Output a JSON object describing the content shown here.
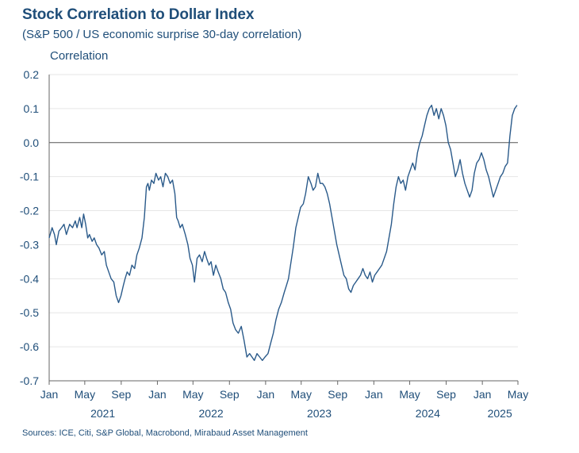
{
  "chart_data": {
    "type": "line",
    "title": "Stock Correlation to Dollar Index",
    "subtitle": "(S&P 500 / US economic surprise 30-day correlation)",
    "ylabel": "Correlation",
    "xlabel": "",
    "source": "Sources: ICE, Citi, S&P Global, Macrobond, Mirabaud Asset Management",
    "ylim": [
      -0.7,
      0.2
    ],
    "xlim": [
      "2021-01-01",
      "2025-05-01"
    ],
    "grid": true,
    "legend": "none",
    "line_color": "#2a5a8a",
    "y_ticks": [
      "0.2",
      "0.1",
      "0.0",
      "-0.1",
      "-0.2",
      "-0.3",
      "-0.4",
      "-0.5",
      "-0.6",
      "-0.7"
    ],
    "x_ticks": [
      {
        "label": "Jan",
        "date": "2021-01-01"
      },
      {
        "label": "May",
        "date": "2021-05-01"
      },
      {
        "label": "Sep",
        "date": "2021-09-01"
      },
      {
        "label": "Jan",
        "date": "2022-01-01"
      },
      {
        "label": "May",
        "date": "2022-05-01"
      },
      {
        "label": "Sep",
        "date": "2022-09-01"
      },
      {
        "label": "Jan",
        "date": "2023-01-01"
      },
      {
        "label": "May",
        "date": "2023-05-01"
      },
      {
        "label": "Sep",
        "date": "2023-09-01"
      },
      {
        "label": "Jan",
        "date": "2024-01-01"
      },
      {
        "label": "May",
        "date": "2024-05-01"
      },
      {
        "label": "Sep",
        "date": "2024-09-01"
      },
      {
        "label": "Jan",
        "date": "2025-01-01"
      },
      {
        "label": "May",
        "date": "2025-05-01"
      }
    ],
    "year_labels": [
      {
        "label": "2021",
        "date": "2021-07-01"
      },
      {
        "label": "2022",
        "date": "2022-07-01"
      },
      {
        "label": "2023",
        "date": "2023-07-01"
      },
      {
        "label": "2024",
        "date": "2024-07-01"
      },
      {
        "label": "2025",
        "date": "2025-03-01"
      }
    ],
    "series": [
      {
        "x": [
          "2021-01-01",
          "2021-01-11",
          "2021-01-19",
          "2021-01-25",
          "2021-02-03",
          "2021-02-12",
          "2021-02-20",
          "2021-02-28",
          "2021-03-11",
          "2021-03-21",
          "2021-03-30",
          "2021-04-05",
          "2021-04-14",
          "2021-04-21",
          "2021-04-27",
          "2021-05-04",
          "2021-05-11",
          "2021-05-17",
          "2021-05-26",
          "2021-06-02",
          "2021-06-10",
          "2021-06-18",
          "2021-06-27",
          "2021-07-06",
          "2021-07-13",
          "2021-07-21",
          "2021-07-29",
          "2021-08-07",
          "2021-08-15",
          "2021-08-23",
          "2021-08-31",
          "2021-09-08",
          "2021-09-14",
          "2021-09-21",
          "2021-09-29",
          "2021-10-07",
          "2021-10-16",
          "2021-10-24",
          "2021-11-01",
          "2021-11-10",
          "2021-11-18",
          "2021-11-25",
          "2021-11-30",
          "2021-12-05",
          "2021-12-12",
          "2021-12-20",
          "2021-12-27",
          "2022-01-05",
          "2022-01-12",
          "2022-01-20",
          "2022-01-28",
          "2022-02-05",
          "2022-02-13",
          "2022-02-21",
          "2022-03-01",
          "2022-03-07",
          "2022-03-12",
          "2022-03-19",
          "2022-03-26",
          "2022-04-05",
          "2022-04-14",
          "2022-04-21",
          "2022-04-29",
          "2022-05-06",
          "2022-05-15",
          "2022-05-23",
          "2022-06-01",
          "2022-06-09",
          "2022-06-16",
          "2022-06-24",
          "2022-07-01",
          "2022-07-09",
          "2022-07-17",
          "2022-07-25",
          "2022-08-03",
          "2022-08-11",
          "2022-08-19",
          "2022-08-28",
          "2022-09-05",
          "2022-09-13",
          "2022-09-22",
          "2022-10-01",
          "2022-10-11",
          "2022-10-20",
          "2022-10-30",
          "2022-11-08",
          "2022-11-16",
          "2022-11-24",
          "2022-12-03",
          "2022-12-12",
          "2022-12-21",
          "2022-12-30",
          "2023-01-09",
          "2023-01-18",
          "2023-01-27",
          "2023-02-05",
          "2023-02-14",
          "2023-02-23",
          "2023-03-05",
          "2023-03-12",
          "2023-03-19",
          "2023-03-26",
          "2023-04-04",
          "2023-04-13",
          "2023-04-21",
          "2023-04-29",
          "2023-05-08",
          "2023-05-16",
          "2023-05-25",
          "2023-06-03",
          "2023-06-10",
          "2023-06-18",
          "2023-06-26",
          "2023-07-04",
          "2023-07-12",
          "2023-07-20",
          "2023-07-28",
          "2023-08-05",
          "2023-08-13",
          "2023-08-21",
          "2023-08-29",
          "2023-09-06",
          "2023-09-14",
          "2023-09-22",
          "2023-09-30",
          "2023-10-08",
          "2023-10-16",
          "2023-10-24",
          "2023-11-01",
          "2023-11-09",
          "2023-11-17",
          "2023-11-25",
          "2023-12-03",
          "2023-12-11",
          "2023-12-19",
          "2023-12-27",
          "2024-01-04",
          "2024-01-12",
          "2024-01-20",
          "2024-01-28",
          "2024-02-05",
          "2024-02-13",
          "2024-02-21",
          "2024-02-29",
          "2024-03-08",
          "2024-03-16",
          "2024-03-24",
          "2024-04-01",
          "2024-04-09",
          "2024-04-17",
          "2024-04-25",
          "2024-05-03",
          "2024-05-11",
          "2024-05-19",
          "2024-05-27",
          "2024-06-04",
          "2024-06-12",
          "2024-06-20",
          "2024-06-28",
          "2024-07-06",
          "2024-07-14",
          "2024-07-22",
          "2024-07-30",
          "2024-08-07",
          "2024-08-15",
          "2024-08-23",
          "2024-08-31",
          "2024-09-08",
          "2024-09-16",
          "2024-09-24",
          "2024-10-02",
          "2024-10-10",
          "2024-10-18",
          "2024-10-26",
          "2024-11-03",
          "2024-11-11",
          "2024-11-19",
          "2024-11-27",
          "2024-12-05",
          "2024-12-13",
          "2024-12-21",
          "2024-12-29",
          "2025-01-06",
          "2025-01-14",
          "2025-01-22",
          "2025-01-30",
          "2025-02-07",
          "2025-02-15",
          "2025-02-23",
          "2025-03-03",
          "2025-03-11",
          "2025-03-19",
          "2025-03-27",
          "2025-04-04",
          "2025-04-12",
          "2025-04-20",
          "2025-04-28"
        ],
        "values": [
          -0.28,
          -0.25,
          -0.27,
          -0.3,
          -0.26,
          -0.25,
          -0.24,
          -0.27,
          -0.24,
          -0.25,
          -0.23,
          -0.25,
          -0.22,
          -0.25,
          -0.21,
          -0.24,
          -0.28,
          -0.27,
          -0.29,
          -0.28,
          -0.3,
          -0.31,
          -0.33,
          -0.32,
          -0.36,
          -0.38,
          -0.4,
          -0.41,
          -0.45,
          -0.47,
          -0.45,
          -0.42,
          -0.4,
          -0.38,
          -0.39,
          -0.36,
          -0.37,
          -0.33,
          -0.31,
          -0.28,
          -0.22,
          -0.13,
          -0.12,
          -0.14,
          -0.11,
          -0.12,
          -0.09,
          -0.11,
          -0.1,
          -0.13,
          -0.09,
          -0.1,
          -0.12,
          -0.11,
          -0.15,
          -0.22,
          -0.23,
          -0.25,
          -0.24,
          -0.27,
          -0.3,
          -0.34,
          -0.36,
          -0.41,
          -0.34,
          -0.33,
          -0.35,
          -0.32,
          -0.34,
          -0.36,
          -0.35,
          -0.39,
          -0.36,
          -0.38,
          -0.4,
          -0.43,
          -0.44,
          -0.47,
          -0.49,
          -0.53,
          -0.55,
          -0.56,
          -0.54,
          -0.58,
          -0.63,
          -0.62,
          -0.63,
          -0.64,
          -0.62,
          -0.63,
          -0.64,
          -0.63,
          -0.62,
          -0.59,
          -0.56,
          -0.52,
          -0.49,
          -0.47,
          -0.44,
          -0.42,
          -0.4,
          -0.36,
          -0.31,
          -0.25,
          -0.22,
          -0.19,
          -0.18,
          -0.15,
          -0.1,
          -0.12,
          -0.14,
          -0.13,
          -0.09,
          -0.12,
          -0.12,
          -0.13,
          -0.15,
          -0.18,
          -0.22,
          -0.26,
          -0.3,
          -0.33,
          -0.36,
          -0.39,
          -0.4,
          -0.43,
          -0.44,
          -0.42,
          -0.41,
          -0.4,
          -0.39,
          -0.37,
          -0.39,
          -0.4,
          -0.38,
          -0.41,
          -0.39,
          -0.38,
          -0.37,
          -0.36,
          -0.34,
          -0.32,
          -0.28,
          -0.24,
          -0.18,
          -0.13,
          -0.1,
          -0.12,
          -0.11,
          -0.14,
          -0.1,
          -0.08,
          -0.06,
          -0.08,
          -0.03,
          0.0,
          0.02,
          0.05,
          0.08,
          0.1,
          0.11,
          0.08,
          0.1,
          0.07,
          0.1,
          0.08,
          0.05,
          0.0,
          -0.02,
          -0.06,
          -0.1,
          -0.08,
          -0.05,
          -0.09,
          -0.12,
          -0.14,
          -0.16,
          -0.14,
          -0.09,
          -0.06,
          -0.05,
          -0.03,
          -0.05,
          -0.08,
          -0.1,
          -0.13,
          -0.16,
          -0.14,
          -0.12,
          -0.1,
          -0.09,
          -0.07,
          -0.06,
          0.02,
          0.08,
          0.1,
          0.11
        ]
      }
    ]
  }
}
